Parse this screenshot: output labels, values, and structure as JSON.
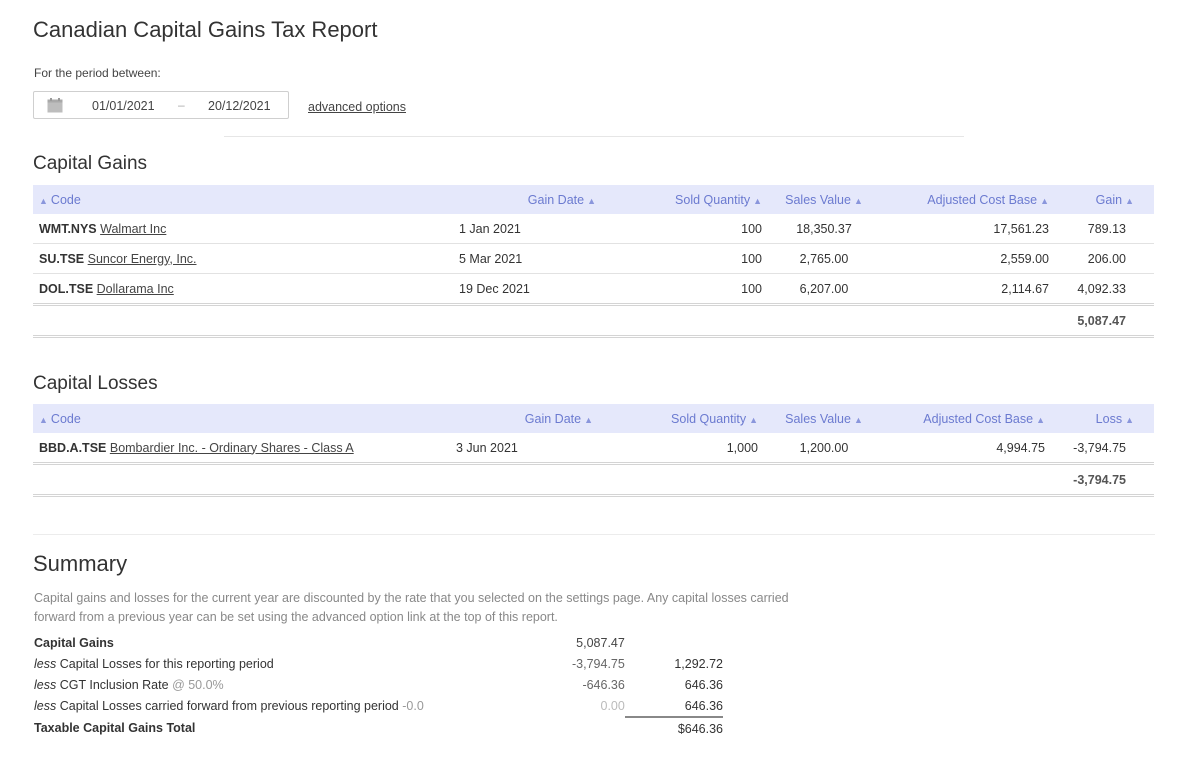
{
  "page": {
    "title": "Canadian Capital Gains Tax Report",
    "period_label": "For the period between:",
    "date_from": "01/01/2021",
    "date_separator": "–",
    "date_to": "20/12/2021",
    "advanced_options": "advanced options"
  },
  "gains": {
    "title": "Capital Gains",
    "columns": [
      "Code",
      "Gain Date",
      "Sold Quantity",
      "Sales Value",
      "Adjusted Cost Base",
      "Gain"
    ],
    "rows": [
      {
        "code": "WMT.NYS",
        "name": "Walmart Inc",
        "date": "1 Jan 2021",
        "qty": "100",
        "sales": "18,350.37",
        "acb": "17,561.23",
        "value": "789.13"
      },
      {
        "code": "SU.TSE",
        "name": "Suncor Energy, Inc.",
        "date": "5 Mar 2021",
        "qty": "100",
        "sales": "2,765.00",
        "acb": "2,559.00",
        "value": "206.00"
      },
      {
        "code": "DOL.TSE",
        "name": "Dollarama Inc",
        "date": "19 Dec 2021",
        "qty": "100",
        "sales": "6,207.00",
        "acb": "2,114.67",
        "value": "4,092.33"
      }
    ],
    "total": "5,087.47"
  },
  "losses": {
    "title": "Capital Losses",
    "columns": [
      "Code",
      "Gain Date",
      "Sold Quantity",
      "Sales Value",
      "Adjusted Cost Base",
      "Loss"
    ],
    "rows": [
      {
        "code": "BBD.A.TSE",
        "name": "Bombardier Inc. - Ordinary Shares - Class A",
        "date": "3 Jun 2021",
        "qty": "1,000",
        "sales": "1,200.00",
        "acb": "4,994.75",
        "value": "-3,794.75"
      }
    ],
    "total": "-3,794.75"
  },
  "summary": {
    "title": "Summary",
    "description": "Capital gains and losses for the current year are discounted by the rate that you selected on the settings page. Any capital losses carried forward from a previous year can be set using the advanced option link at the top of this report.",
    "capital_gains_label": "Capital Gains",
    "capital_gains_value": "5,087.47",
    "less": "less",
    "losses_label": "Capital Losses for this reporting period",
    "losses_value": "-3,794.75",
    "losses_net": "1,292.72",
    "cgt_label": "CGT Inclusion Rate",
    "cgt_rate": "@ 50.0%",
    "cgt_value": "-646.36",
    "cgt_net": "646.36",
    "carried_label": "Capital Losses carried forward from previous reporting period",
    "carried_amount": "-0.0",
    "carried_value": "0.00",
    "carried_net": "646.36",
    "total_label": "Taxable Capital Gains Total",
    "total_value": "$646.36"
  },
  "colors": {
    "header_bg": "#e5e8fb",
    "header_text": "#6b7ad0"
  },
  "icons": {
    "calendar": "calendar-icon",
    "sort": "sort-icon"
  }
}
